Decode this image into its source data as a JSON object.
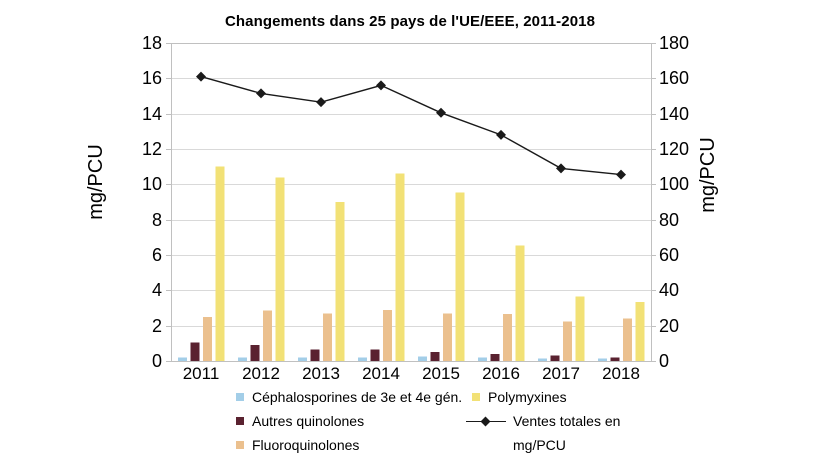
{
  "chart_data": {
    "type": "bar+line",
    "title": "Changements dans 25 pays de l'UE/EEE, 2011-2018",
    "categories": [
      "2011",
      "2012",
      "2013",
      "2014",
      "2015",
      "2016",
      "2017",
      "2018"
    ],
    "bar_series": [
      {
        "name": "Céphalosporines de 3e et 4e gén.",
        "color": "#A3CEE8",
        "axis": "left",
        "values": [
          0.2,
          0.2,
          0.2,
          0.2,
          0.25,
          0.2,
          0.15,
          0.15
        ]
      },
      {
        "name": "Autres quinolones",
        "color": "#5A2230",
        "axis": "left",
        "values": [
          1.05,
          0.9,
          0.65,
          0.65,
          0.5,
          0.4,
          0.3,
          0.2
        ]
      },
      {
        "name": "Fluoroquinolones",
        "color": "#EBC08E",
        "axis": "left",
        "values": [
          2.5,
          2.85,
          2.7,
          2.9,
          2.7,
          2.65,
          2.25,
          2.4
        ]
      },
      {
        "name": "Polymyxines",
        "color": "#F2E176",
        "axis": "left",
        "values": [
          11.0,
          10.4,
          9.0,
          10.6,
          9.55,
          6.55,
          3.65,
          3.35
        ]
      }
    ],
    "line_series": [
      {
        "name": "Ventes totales en mg/PCU",
        "color": "#1A1A1A",
        "marker": "diamond",
        "axis": "right",
        "values": [
          161,
          151.5,
          146.5,
          156,
          140.5,
          128,
          109,
          105.5
        ]
      }
    ],
    "left_axis": {
      "label": "mg/PCU",
      "min": 0,
      "max": 18,
      "ticks": [
        0,
        2,
        4,
        6,
        8,
        10,
        12,
        14,
        16,
        18
      ]
    },
    "right_axis": {
      "label": "mg/PCU",
      "min": 0,
      "max": 180,
      "ticks": [
        0,
        20,
        40,
        60,
        80,
        100,
        120,
        140,
        160,
        180
      ]
    },
    "grid": true,
    "legend_position": "bottom",
    "colors": {
      "gridline": "#D9D9D9",
      "plot_border": "#C0C0C0",
      "background": "#FFFFFF"
    }
  },
  "legend": {
    "items": [
      {
        "label": "Céphalosporines de 3e et 4e gén.",
        "type": "swatch",
        "series": 0
      },
      {
        "label": "Autres quinolones",
        "type": "swatch",
        "series": 1
      },
      {
        "label": "Fluoroquinolones",
        "type": "swatch",
        "series": 2
      },
      {
        "label": "Polymyxines",
        "type": "swatch",
        "series": 3
      },
      {
        "label": "Ventes totales en mg/PCU",
        "label_line1": "Ventes totales en",
        "label_line2": "mg/PCU",
        "type": "line"
      }
    ]
  }
}
